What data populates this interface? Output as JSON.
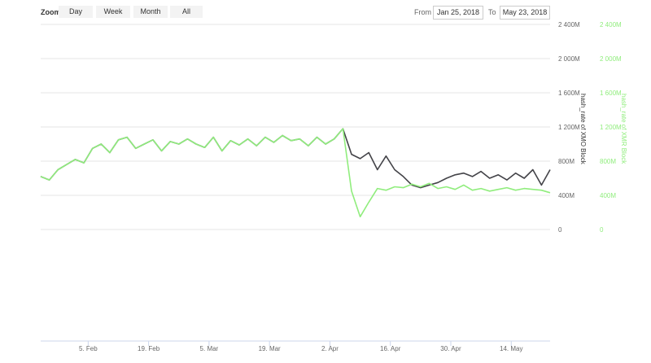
{
  "toolbar": {
    "zoom_label": "Zoom",
    "zoom_buttons": [
      "Day",
      "Week",
      "Month",
      "All"
    ],
    "from_label": "From",
    "from_value": "Jan 25, 2018",
    "to_label": "To",
    "to_value": "May 23, 2018"
  },
  "chart_data": {
    "type": "line",
    "x_range": [
      "2018-01-25",
      "2018-05-23"
    ],
    "x_ticks": [
      "5. Feb",
      "19. Feb",
      "5. Mar",
      "19. Mar",
      "2. Apr",
      "16. Apr",
      "30. Apr",
      "14. May"
    ],
    "x_tick_dates": [
      "2018-02-05",
      "2018-02-19",
      "2018-03-05",
      "2018-03-19",
      "2018-04-02",
      "2018-04-16",
      "2018-04-30",
      "2018-05-14"
    ],
    "y_ticks": [
      "0",
      "400M",
      "800M",
      "1 200M",
      "1 600M",
      "2 000M",
      "2 400M"
    ],
    "ylim": [
      0,
      2400
    ],
    "y_unit": "M",
    "grid": true,
    "x": [
      "2018-01-25",
      "2018-01-27",
      "2018-01-29",
      "2018-01-31",
      "2018-02-02",
      "2018-02-04",
      "2018-02-06",
      "2018-02-08",
      "2018-02-10",
      "2018-02-12",
      "2018-02-14",
      "2018-02-16",
      "2018-02-18",
      "2018-02-20",
      "2018-02-22",
      "2018-02-24",
      "2018-02-26",
      "2018-02-28",
      "2018-03-02",
      "2018-03-04",
      "2018-03-06",
      "2018-03-08",
      "2018-03-10",
      "2018-03-12",
      "2018-03-14",
      "2018-03-16",
      "2018-03-18",
      "2018-03-20",
      "2018-03-22",
      "2018-03-24",
      "2018-03-26",
      "2018-03-28",
      "2018-03-30",
      "2018-04-01",
      "2018-04-03",
      "2018-04-05",
      "2018-04-07",
      "2018-04-09",
      "2018-04-11",
      "2018-04-13",
      "2018-04-15",
      "2018-04-17",
      "2018-04-19",
      "2018-04-21",
      "2018-04-23",
      "2018-04-25",
      "2018-04-27",
      "2018-04-29",
      "2018-05-01",
      "2018-05-03",
      "2018-05-05",
      "2018-05-07",
      "2018-05-09",
      "2018-05-11",
      "2018-05-13",
      "2018-05-15",
      "2018-05-17",
      "2018-05-19",
      "2018-05-21",
      "2018-05-23"
    ],
    "series": [
      {
        "name": "hash_rate of XMO Block",
        "color": "#434348",
        "axis": "left",
        "values": [
          620,
          580,
          700,
          760,
          820,
          780,
          950,
          1000,
          900,
          1050,
          1080,
          950,
          1000,
          1050,
          920,
          1030,
          1000,
          1060,
          1000,
          960,
          1080,
          920,
          1040,
          990,
          1060,
          980,
          1080,
          1020,
          1100,
          1040,
          1060,
          980,
          1080,
          1000,
          1060,
          1180,
          880,
          830,
          900,
          700,
          860,
          700,
          620,
          520,
          490,
          520,
          550,
          600,
          640,
          660,
          620,
          680,
          600,
          640,
          580,
          660,
          600,
          700,
          520,
          700
        ]
      },
      {
        "name": "hash_rate of XMR Block",
        "color": "#90ed7d",
        "axis": "right",
        "values": [
          620,
          580,
          700,
          760,
          820,
          780,
          950,
          1000,
          900,
          1050,
          1080,
          950,
          1000,
          1050,
          920,
          1030,
          1000,
          1060,
          1000,
          960,
          1080,
          920,
          1040,
          990,
          1060,
          980,
          1080,
          1020,
          1100,
          1040,
          1060,
          980,
          1080,
          1000,
          1060,
          1180,
          450,
          150,
          320,
          480,
          460,
          500,
          490,
          530,
          500,
          540,
          480,
          500,
          470,
          520,
          460,
          480,
          450,
          470,
          490,
          460,
          480,
          470,
          460,
          430
        ]
      }
    ]
  }
}
